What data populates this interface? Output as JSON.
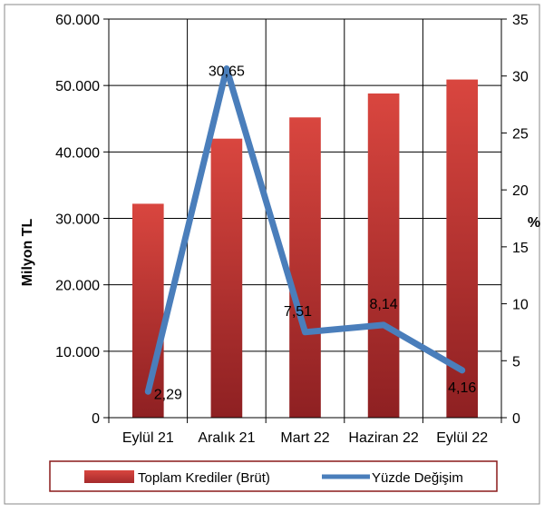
{
  "chart_data": {
    "type": "bar",
    "categories": [
      "Eylül 21",
      "Aralık 21",
      "Mart 22",
      "Haziran 22",
      "Eylül 22"
    ],
    "series": [
      {
        "name": "Toplam Krediler (Brüt)",
        "type": "bar",
        "axis": "left",
        "values": [
          32200,
          42000,
          45200,
          48800,
          50900
        ]
      },
      {
        "name": "Yüzde Değişim",
        "type": "line",
        "axis": "right",
        "values": [
          2.29,
          30.65,
          7.51,
          8.14,
          4.16
        ],
        "data_labels": [
          "2,29",
          "30,65",
          "7,51",
          "8,14",
          "4,16"
        ]
      }
    ],
    "ylabel": "Milyon TL",
    "y2label": "%",
    "ylim": [
      0,
      60000
    ],
    "y2lim": [
      0,
      35
    ],
    "y_ticks": [
      "0",
      "10.000",
      "20.000",
      "30.000",
      "40.000",
      "50.000",
      "60.000"
    ],
    "y2_ticks": [
      "0",
      "5",
      "10",
      "15",
      "20",
      "25",
      "30",
      "35"
    ],
    "grid": true,
    "legend_position": "bottom",
    "colors": {
      "bar": "#c0393b",
      "bar_dark": "#8e2022",
      "line": "#4a7ebb",
      "grid": "#000000"
    }
  }
}
